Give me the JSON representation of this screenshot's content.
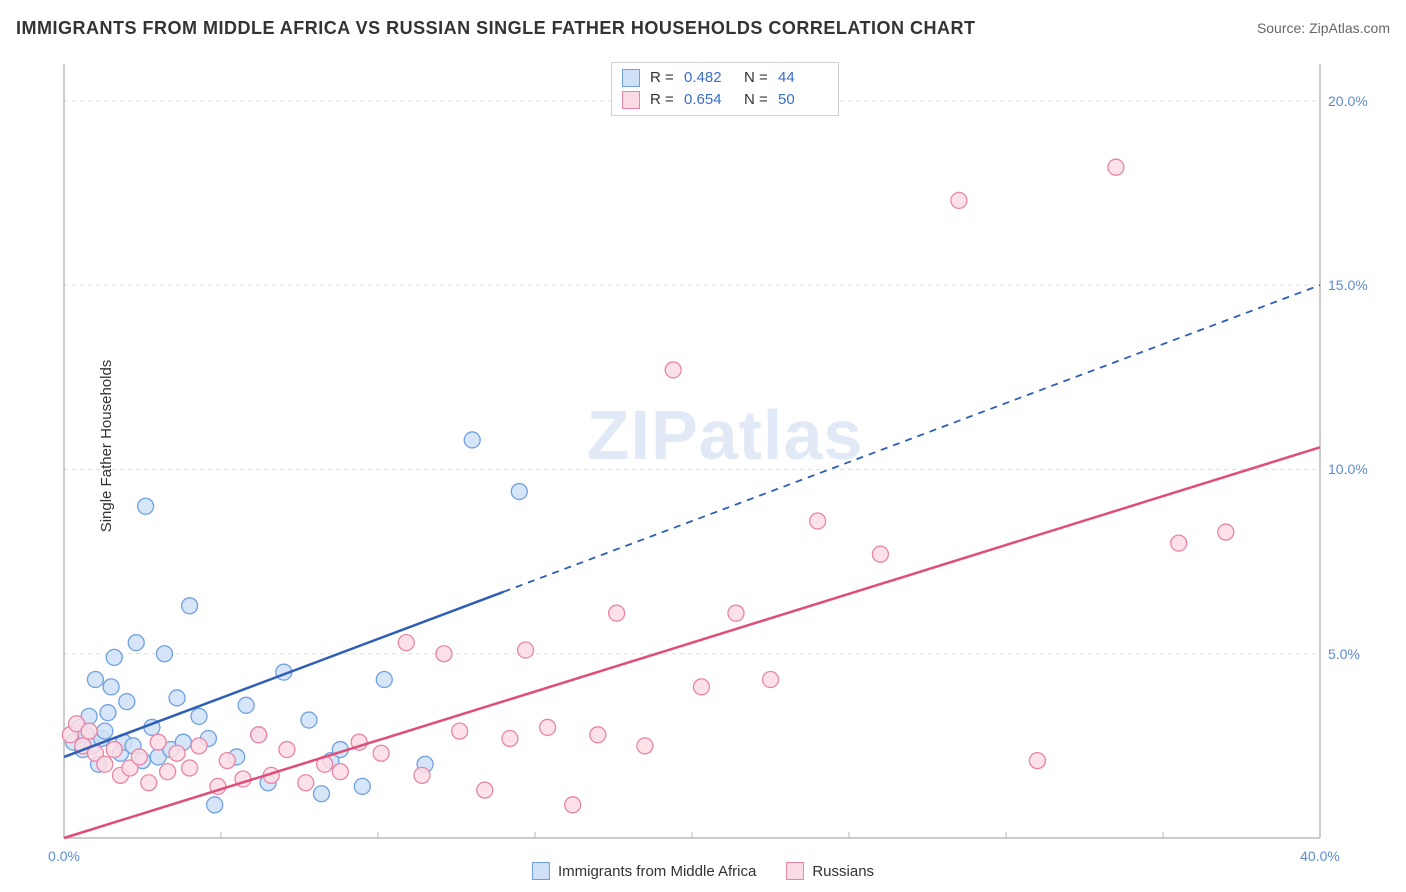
{
  "title": "IMMIGRANTS FROM MIDDLE AFRICA VS RUSSIAN SINGLE FATHER HOUSEHOLDS CORRELATION CHART",
  "source_label": "Source:",
  "source_name": "ZipAtlas.com",
  "watermark": "ZIPatlas",
  "ylabel": "Single Father Households",
  "chart": {
    "type": "scatter",
    "xlim": [
      0,
      40
    ],
    "ylim": [
      0,
      21
    ],
    "xticks": [
      0,
      40
    ],
    "xtick_labels": [
      "0.0%",
      "40.0%"
    ],
    "xtick_minor": [
      5,
      10,
      15,
      20,
      25,
      30,
      35
    ],
    "yticks": [
      5,
      10,
      15,
      20
    ],
    "ytick_labels": [
      "5.0%",
      "10.0%",
      "15.0%",
      "20.0%"
    ],
    "grid_color": "#dddddd",
    "axis_color": "#bbbbbb",
    "background_color": "#ffffff",
    "series": [
      {
        "name": "Immigrants from Middle Africa",
        "color_fill": "#cfe0f7",
        "color_stroke": "#6fa1e0",
        "trend_color": "#2e5fb5",
        "R": "0.482",
        "N": "44",
        "trend_intercept": 2.2,
        "trend_slope": 0.32,
        "trend_solid_xmax": 14,
        "marker_r": 8,
        "points": [
          [
            0.3,
            2.6
          ],
          [
            0.5,
            3.0
          ],
          [
            0.6,
            2.4
          ],
          [
            0.7,
            2.8
          ],
          [
            0.8,
            3.3
          ],
          [
            0.9,
            2.5
          ],
          [
            1.0,
            4.3
          ],
          [
            1.1,
            2.0
          ],
          [
            1.2,
            2.7
          ],
          [
            1.3,
            2.9
          ],
          [
            1.4,
            3.4
          ],
          [
            1.5,
            4.1
          ],
          [
            1.6,
            4.9
          ],
          [
            1.8,
            2.3
          ],
          [
            1.9,
            2.6
          ],
          [
            2.0,
            3.7
          ],
          [
            2.2,
            2.5
          ],
          [
            2.3,
            5.3
          ],
          [
            2.5,
            2.1
          ],
          [
            2.6,
            9.0
          ],
          [
            2.8,
            3.0
          ],
          [
            3.0,
            2.2
          ],
          [
            3.2,
            5.0
          ],
          [
            3.4,
            2.4
          ],
          [
            3.6,
            3.8
          ],
          [
            3.8,
            2.6
          ],
          [
            4.0,
            6.3
          ],
          [
            4.3,
            3.3
          ],
          [
            4.6,
            2.7
          ],
          [
            4.8,
            0.9
          ],
          [
            5.5,
            2.2
          ],
          [
            5.8,
            3.6
          ],
          [
            6.5,
            1.5
          ],
          [
            7.0,
            4.5
          ],
          [
            7.8,
            3.2
          ],
          [
            8.2,
            1.2
          ],
          [
            8.5,
            2.1
          ],
          [
            9.5,
            1.4
          ],
          [
            10.2,
            4.3
          ],
          [
            11.5,
            2.0
          ],
          [
            13.0,
            10.8
          ],
          [
            14.5,
            9.4
          ],
          [
            8.8,
            2.4
          ],
          [
            6.2,
            2.8
          ]
        ]
      },
      {
        "name": "Russians",
        "color_fill": "#fbdce5",
        "color_stroke": "#e985a6",
        "trend_color": "#e04d78",
        "R": "0.654",
        "N": "50",
        "trend_intercept": 0.0,
        "trend_slope": 0.265,
        "trend_solid_xmax": 40,
        "marker_r": 8,
        "points": [
          [
            0.2,
            2.8
          ],
          [
            0.4,
            3.1
          ],
          [
            0.6,
            2.5
          ],
          [
            0.8,
            2.9
          ],
          [
            1.0,
            2.3
          ],
          [
            1.3,
            2.0
          ],
          [
            1.6,
            2.4
          ],
          [
            1.8,
            1.7
          ],
          [
            2.1,
            1.9
          ],
          [
            2.4,
            2.2
          ],
          [
            2.7,
            1.5
          ],
          [
            3.0,
            2.6
          ],
          [
            3.3,
            1.8
          ],
          [
            3.6,
            2.3
          ],
          [
            4.0,
            1.9
          ],
          [
            4.3,
            2.5
          ],
          [
            4.9,
            1.4
          ],
          [
            5.2,
            2.1
          ],
          [
            5.7,
            1.6
          ],
          [
            6.2,
            2.8
          ],
          [
            6.6,
            1.7
          ],
          [
            7.1,
            2.4
          ],
          [
            7.7,
            1.5
          ],
          [
            8.3,
            2.0
          ],
          [
            8.8,
            1.8
          ],
          [
            9.4,
            2.6
          ],
          [
            10.1,
            2.3
          ],
          [
            10.9,
            5.3
          ],
          [
            11.4,
            1.7
          ],
          [
            12.1,
            5.0
          ],
          [
            12.6,
            2.9
          ],
          [
            13.4,
            1.3
          ],
          [
            14.2,
            2.7
          ],
          [
            14.7,
            5.1
          ],
          [
            15.4,
            3.0
          ],
          [
            16.2,
            0.9
          ],
          [
            17.0,
            2.8
          ],
          [
            17.6,
            6.1
          ],
          [
            18.5,
            2.5
          ],
          [
            19.4,
            12.7
          ],
          [
            20.3,
            4.1
          ],
          [
            21.4,
            6.1
          ],
          [
            22.5,
            4.3
          ],
          [
            24.0,
            8.6
          ],
          [
            26.0,
            7.7
          ],
          [
            28.5,
            17.3
          ],
          [
            31.0,
            2.1
          ],
          [
            33.5,
            18.2
          ],
          [
            35.5,
            8.0
          ],
          [
            37.0,
            8.3
          ]
        ]
      }
    ]
  },
  "legend_top": {
    "R_label": "R =",
    "N_label": "N ="
  }
}
